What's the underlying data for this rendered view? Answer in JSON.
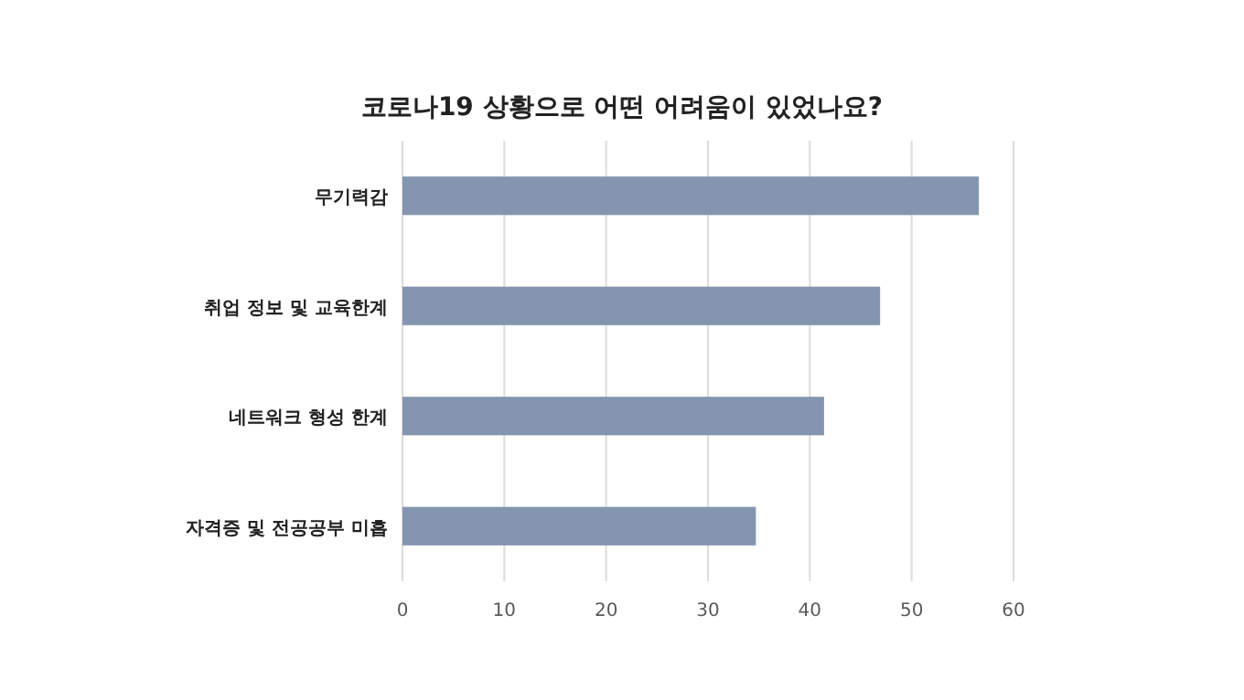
{
  "chart_data": {
    "type": "bar",
    "orientation": "horizontal",
    "title": "코로나19 상황으로 어떤 어려움이 있었나요?",
    "categories": [
      "무기력감",
      "취업 정보 및 교육한계",
      "네트워크 형성 한계",
      "자격증 및 전공공부 미흡"
    ],
    "values": [
      56.6,
      46.9,
      41.4,
      34.7
    ],
    "color": "#8496af",
    "xlim": [
      0,
      60
    ],
    "xticks": [
      0,
      10,
      20,
      30,
      40,
      50,
      60
    ],
    "grid": "x"
  }
}
